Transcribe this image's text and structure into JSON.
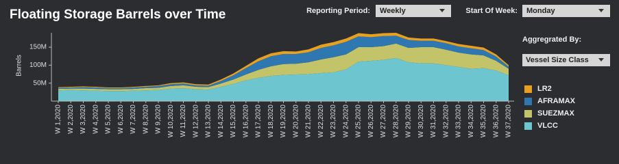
{
  "controls": {
    "reporting_period_label": "Reporting Period:",
    "reporting_period": "Weekly",
    "start_of_week_label": "Start Of Week:",
    "start_of_week": "Monday",
    "aggregated_by_label": "Aggregrated By:",
    "aggregated_by": "Vessel Size Class"
  },
  "chart_data": {
    "type": "stacked_area",
    "title": "Floating Storage Barrels over Time",
    "y_label": "Barrels",
    "categories": [
      "W 1,2020",
      "W 2,2020",
      "W 3,2020",
      "W 4,2020",
      "W 5,2020",
      "W 6,2020",
      "W 7,2020",
      "W 8,2020",
      "W 9,2020",
      "W 10,2020",
      "W 11,2020",
      "W 12,2020",
      "W 13,2020",
      "W 14,2020",
      "W 15,2020",
      "W 16,2020",
      "W 17,2020",
      "W 18,2020",
      "W 19,2020",
      "W 20,2020",
      "W 21,2020",
      "W 22,2020",
      "W 23,2020",
      "W 24,2020",
      "W 25,2020",
      "W 26,2020",
      "W 27,2020",
      "W 28,2020",
      "W 29,2020",
      "W 30,2020",
      "W 31,2020",
      "W 32,2020",
      "W 33,2020",
      "W 34,2020",
      "W 35,2020",
      "W 36,2020",
      "W 37,2020"
    ],
    "series": [
      {
        "name": "VLCC",
        "color": "#6cc5cf",
        "values": [
          30000000,
          31000000,
          30000000,
          29000000,
          28000000,
          28000000,
          29000000,
          30000000,
          31000000,
          35000000,
          36000000,
          33000000,
          32000000,
          40000000,
          48000000,
          58000000,
          65000000,
          70000000,
          73000000,
          74000000,
          75000000,
          78000000,
          80000000,
          88000000,
          110000000,
          112000000,
          115000000,
          120000000,
          108000000,
          105000000,
          105000000,
          100000000,
          95000000,
          90000000,
          92000000,
          85000000,
          72000000
        ]
      },
      {
        "name": "SUEZMAX",
        "color": "#c3c46a",
        "values": [
          4000000,
          4000000,
          5000000,
          5000000,
          5000000,
          5000000,
          5000000,
          6000000,
          6000000,
          7000000,
          8000000,
          7000000,
          7000000,
          9000000,
          12000000,
          16000000,
          22000000,
          27000000,
          30000000,
          30000000,
          33000000,
          38000000,
          42000000,
          42000000,
          40000000,
          38000000,
          38000000,
          40000000,
          40000000,
          45000000,
          45000000,
          43000000,
          40000000,
          40000000,
          35000000,
          27000000,
          18000000
        ]
      },
      {
        "name": "AFRAMAX",
        "color": "#2e77b0",
        "values": [
          3000000,
          3000000,
          4000000,
          4000000,
          3000000,
          3000000,
          4000000,
          4000000,
          5000000,
          5000000,
          5000000,
          4000000,
          4000000,
          7000000,
          12000000,
          18000000,
          24000000,
          28000000,
          28000000,
          27000000,
          28000000,
          32000000,
          33000000,
          35000000,
          30000000,
          28000000,
          28000000,
          22000000,
          22000000,
          18000000,
          18000000,
          18000000,
          17000000,
          17000000,
          15000000,
          12000000,
          6000000
        ]
      },
      {
        "name": "LR2",
        "color": "#e8a020",
        "values": [
          2000000,
          2000000,
          2000000,
          2000000,
          2000000,
          2000000,
          2000000,
          2000000,
          2000000,
          3000000,
          3000000,
          3000000,
          3000000,
          4000000,
          5000000,
          6000000,
          8000000,
          8000000,
          8000000,
          7000000,
          8000000,
          9000000,
          9000000,
          9000000,
          9000000,
          8000000,
          8000000,
          8000000,
          7000000,
          6000000,
          6000000,
          6000000,
          7000000,
          7000000,
          7000000,
          6000000,
          4000000
        ]
      }
    ],
    "ylim": [
      0,
      190000000
    ],
    "yticks": [
      {
        "value": 50000000,
        "label": "50M"
      },
      {
        "value": 100000000,
        "label": "100M"
      },
      {
        "value": 150000000,
        "label": "150M"
      }
    ]
  }
}
